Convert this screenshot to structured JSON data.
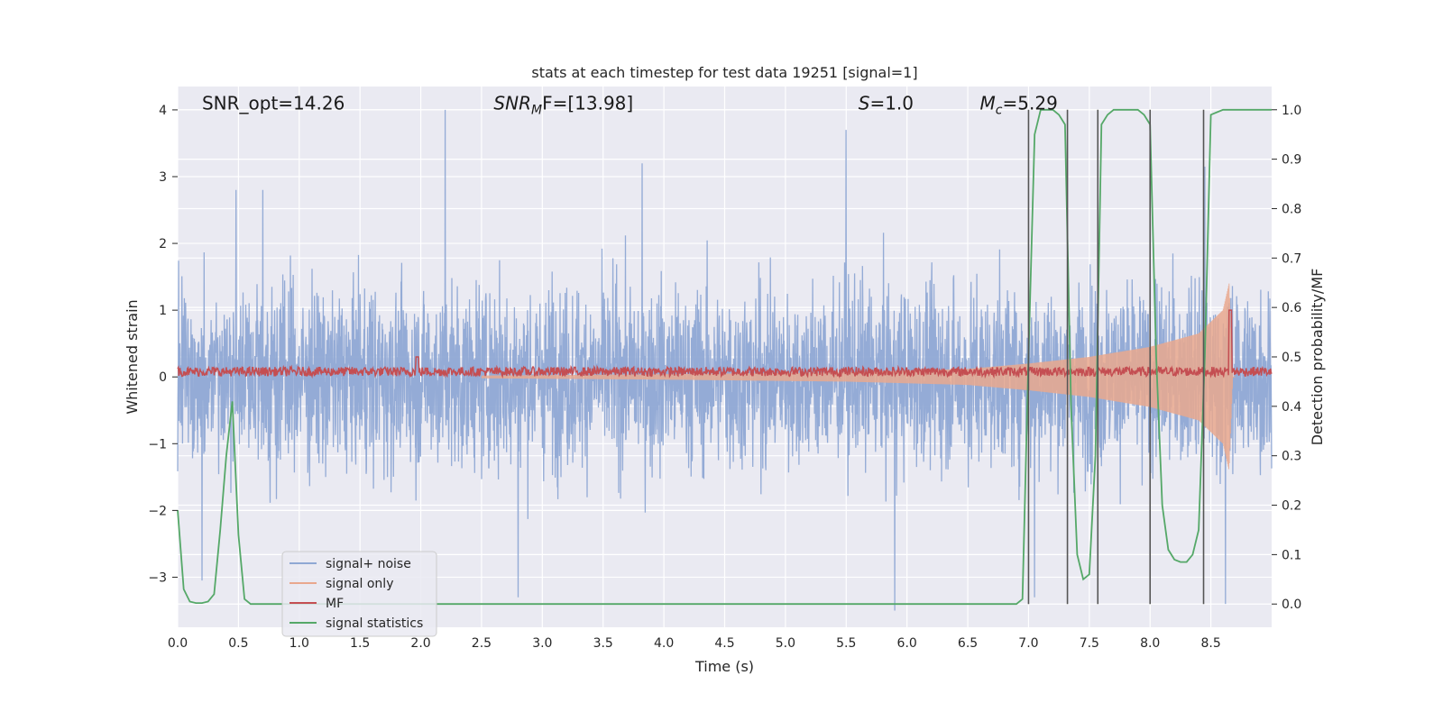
{
  "chart_data": {
    "type": "line",
    "title": "stats at each timestep for test data 19251 [signal=1]",
    "xlabel": "Time (s)",
    "ylabel": "Whitened strain",
    "y2label": "Detection probability/MF",
    "xlim": [
      0.0,
      9.0
    ],
    "ylim": [
      -3.75,
      4.35
    ],
    "y2lim": [
      -0.047,
      1.047
    ],
    "xticks": [
      "0.0",
      "0.5",
      "1.0",
      "1.5",
      "2.0",
      "2.5",
      "3.0",
      "3.5",
      "4.0",
      "4.5",
      "5.0",
      "5.5",
      "6.0",
      "6.5",
      "7.0",
      "7.5",
      "8.0",
      "8.5"
    ],
    "yticks": [
      "−3",
      "−2",
      "−1",
      "0",
      "1",
      "2",
      "3",
      "4"
    ],
    "y2ticks": [
      "0.0",
      "0.1",
      "0.2",
      "0.3",
      "0.4",
      "0.5",
      "0.6",
      "0.7",
      "0.8",
      "0.9",
      "1.0"
    ],
    "grid": true,
    "legend_position": "lower-left",
    "annotations": [
      {
        "label": "SNR_opt=14.26",
        "x": 0.2,
        "y": 4.1
      },
      {
        "label_main": "SNR",
        "label_sub": "M",
        "label_rest": "F=[13.98]",
        "x": 2.6,
        "y": 4.1
      },
      {
        "label_main": "S",
        "label_rest": "=1.0",
        "x": 5.6,
        "y": 4.1
      },
      {
        "label_main": "M",
        "label_sub": "c",
        "label_rest": "=5.29",
        "x": 6.6,
        "y": 4.1
      }
    ],
    "vertical_lines_x": [
      7.0,
      7.32,
      7.57,
      8.0,
      8.44
    ],
    "series": [
      {
        "name": "signal+ noise",
        "color": "#8fa8d4",
        "description_axis": "left",
        "approx_range": [
          -3.5,
          4.0
        ],
        "peaks": [
          [
            0.48,
            2.8
          ],
          [
            0.7,
            2.8
          ],
          [
            2.2,
            4.0
          ],
          [
            3.82,
            3.2
          ],
          [
            5.5,
            3.7
          ],
          [
            8.45,
            3.15
          ],
          [
            5.9,
            -3.5
          ],
          [
            8.62,
            -3.4
          ],
          [
            7.05,
            -3.3
          ],
          [
            0.2,
            -3.05
          ],
          [
            2.8,
            -3.3
          ]
        ]
      },
      {
        "name": "signal only",
        "color": "#e9a88e",
        "description_axis": "left",
        "envelope": [
          [
            2.5,
            0.02
          ],
          [
            4.0,
            0.04
          ],
          [
            5.5,
            0.07
          ],
          [
            6.5,
            0.12
          ],
          [
            7.0,
            0.2
          ],
          [
            7.5,
            0.3
          ],
          [
            8.0,
            0.45
          ],
          [
            8.4,
            0.65
          ],
          [
            8.6,
            1.0
          ],
          [
            8.65,
            1.4
          ],
          [
            8.68,
            0.0
          ]
        ]
      },
      {
        "name": "MF",
        "color": "#c44e52",
        "description_axis": "left",
        "baseline": 0.08,
        "peaks": [
          [
            1.97,
            0.3
          ],
          [
            8.66,
            1.0
          ]
        ]
      },
      {
        "name": "signal statistics",
        "color": "#55a868",
        "description_axis": "right",
        "x": [
          0.0,
          0.05,
          0.1,
          0.15,
          0.2,
          0.25,
          0.3,
          0.35,
          0.4,
          0.45,
          0.5,
          0.55,
          0.6,
          1.0,
          2.0,
          3.0,
          4.0,
          5.0,
          6.0,
          6.9,
          6.95,
          7.0,
          7.05,
          7.1,
          7.2,
          7.25,
          7.3,
          7.35,
          7.4,
          7.45,
          7.5,
          7.55,
          7.6,
          7.65,
          7.7,
          7.8,
          7.9,
          7.95,
          8.0,
          8.05,
          8.1,
          8.15,
          8.2,
          8.25,
          8.3,
          8.35,
          8.4,
          8.45,
          8.5,
          8.55,
          8.6,
          8.7,
          9.0
        ],
        "y": [
          0.19,
          0.03,
          0.005,
          0.002,
          0.002,
          0.005,
          0.02,
          0.15,
          0.3,
          0.41,
          0.14,
          0.01,
          0.0,
          0.0,
          0.0,
          0.0,
          0.0,
          0.0,
          0.0,
          0.0,
          0.01,
          0.5,
          0.95,
          1.0,
          1.0,
          0.99,
          0.97,
          0.4,
          0.1,
          0.05,
          0.06,
          0.3,
          0.97,
          0.99,
          1.0,
          1.0,
          1.0,
          0.99,
          0.97,
          0.5,
          0.2,
          0.11,
          0.09,
          0.085,
          0.085,
          0.1,
          0.15,
          0.5,
          0.99,
          0.995,
          1.0,
          1.0,
          1.0
        ]
      }
    ]
  }
}
